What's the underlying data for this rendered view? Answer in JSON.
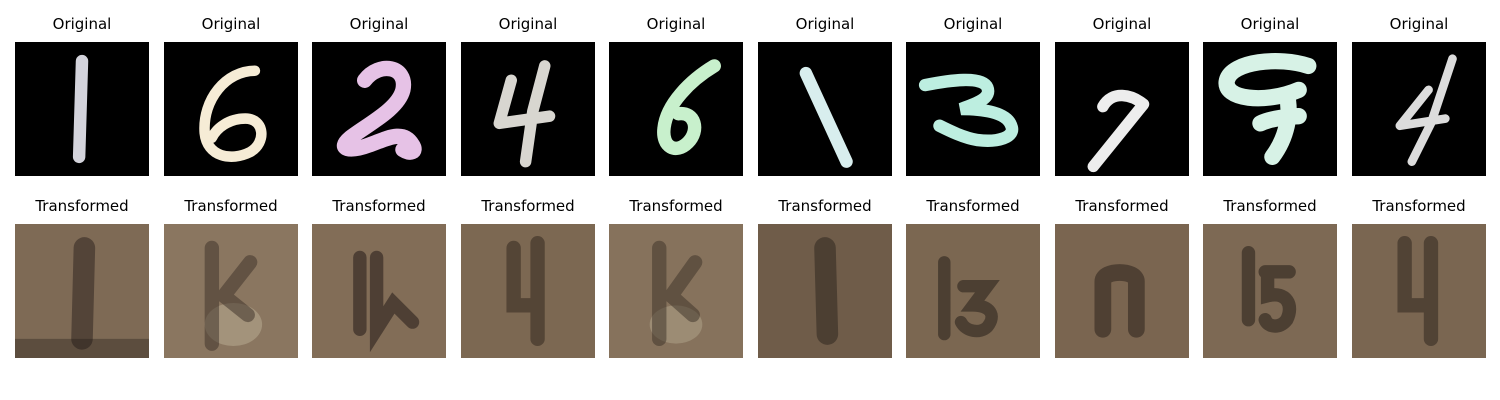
{
  "rows": [
    {
      "row_name": "original",
      "title": "Original",
      "items": [
        {
          "digit": "1",
          "color": "#d4d4dc"
        },
        {
          "digit": "6",
          "color": "#f6ecd6"
        },
        {
          "digit": "2",
          "color": "#e6c2e6"
        },
        {
          "digit": "4",
          "color": "#d8d6d0"
        },
        {
          "digit": "6",
          "color": "#c8f0cc"
        },
        {
          "digit": "1",
          "color": "#d8eeee"
        },
        {
          "digit": "3",
          "color": "#bdeee0"
        },
        {
          "digit": "7",
          "color": "#ededed"
        },
        {
          "digit": "9",
          "color": "#d7f2e6"
        },
        {
          "digit": "4",
          "color": "#dcdcdc"
        }
      ]
    },
    {
      "row_name": "transformed",
      "title": "Transformed",
      "items": [
        {
          "color_light": "#7e6a55",
          "color_dark": "#2f2520"
        },
        {
          "color_light": "#8a7660",
          "color_dark": "#3a2e26"
        },
        {
          "color_light": "#826d57",
          "color_dark": "#2c221c"
        },
        {
          "color_light": "#7c6852",
          "color_dark": "#33281f"
        },
        {
          "color_light": "#86725c",
          "color_dark": "#3a2f26"
        },
        {
          "color_light": "#6f5c49",
          "color_dark": "#2a211b"
        },
        {
          "color_light": "#7b6751",
          "color_dark": "#2d241e"
        },
        {
          "color_light": "#7a6550",
          "color_dark": "#2b221c"
        },
        {
          "color_light": "#7d6954",
          "color_dark": "#2c231d"
        },
        {
          "color_light": "#7a6651",
          "color_dark": "#30261f"
        }
      ]
    }
  ]
}
